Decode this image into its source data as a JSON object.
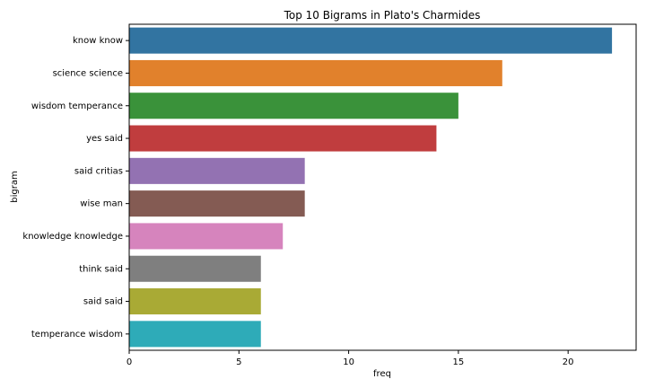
{
  "chart_data": {
    "type": "bar",
    "orientation": "horizontal",
    "title": "Top 10 Bigrams in Plato's Charmides",
    "xlabel": "freq",
    "ylabel": "bigram",
    "categories": [
      "know know",
      "science science",
      "wisdom temperance",
      "yes said",
      "said critias",
      "wise man",
      "knowledge knowledge",
      "think said",
      "said said",
      "temperance wisdom"
    ],
    "values": [
      22,
      17,
      15,
      14,
      8,
      8,
      7,
      6,
      6,
      6
    ],
    "colors": [
      "#3274a1",
      "#e1812c",
      "#3a923a",
      "#c03d3e",
      "#9372b2",
      "#845b53",
      "#d684bd",
      "#7f7f7f",
      "#a9aa35",
      "#2eabb8"
    ],
    "xlim": [
      0,
      23.1
    ],
    "xticks": [
      0,
      5,
      10,
      15,
      20
    ],
    "grid": false,
    "legend": "none"
  }
}
